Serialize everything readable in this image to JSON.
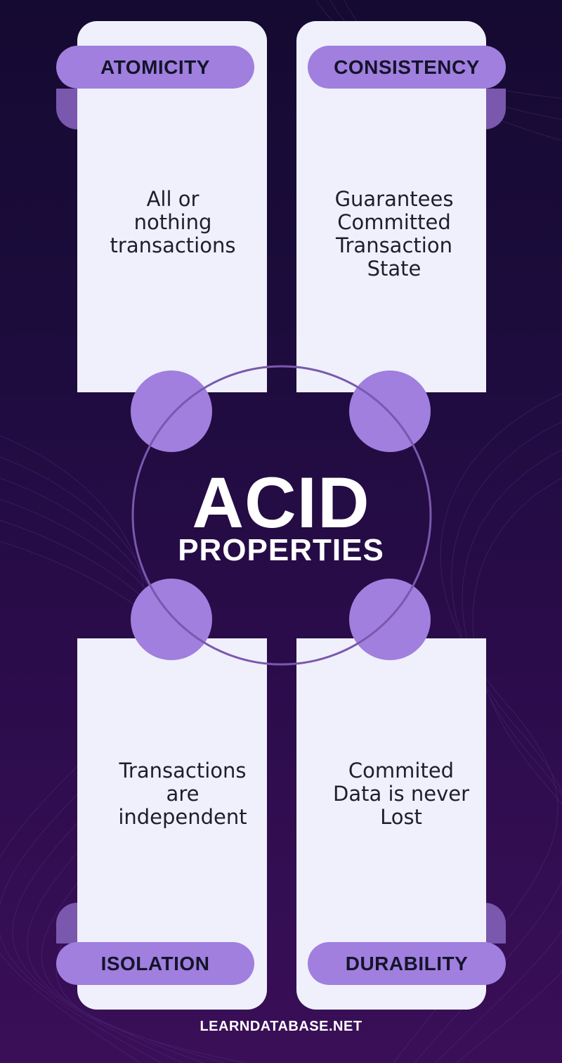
{
  "title": "ACID",
  "subtitle": "PROPERTIES",
  "footer": "LEARNDATABASE.NET",
  "properties": [
    {
      "name": "ATOMICITY",
      "description": "All or\nnothing\ntransactions"
    },
    {
      "name": "CONSISTENCY",
      "description": "Guarantees\nCommitted\nTransaction\nState"
    },
    {
      "name": "ISOLATION",
      "description": "Transactions\nare\nindependent"
    },
    {
      "name": "DURABILITY",
      "description": "Commited\nData is never\nLost"
    }
  ],
  "colors": {
    "background": "#1c0c3c",
    "card": "#eff0fb",
    "accent": "#a07fdf",
    "fold": "#7a58ad",
    "ring": "#7a58ad",
    "text_dark": "#14142a",
    "text_light": "#ffffff"
  }
}
